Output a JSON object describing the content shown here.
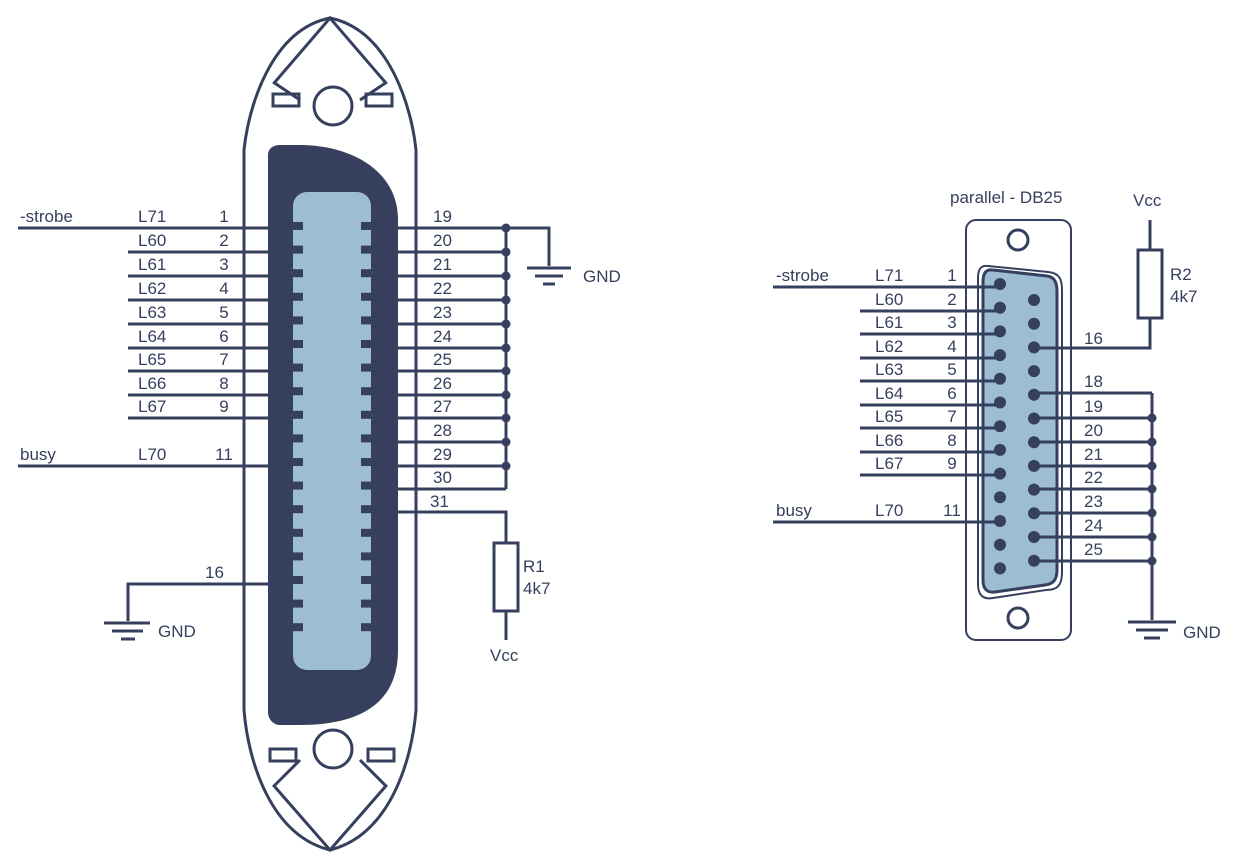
{
  "colors": {
    "ink": "#36405e",
    "body_dark": "#36405e",
    "body_light": "#9dbdd4",
    "background": "#ffffff"
  },
  "centronics": {
    "left_signals": [
      {
        "name": "-strobe",
        "line": "L71",
        "pin": "1"
      },
      {
        "name": "",
        "line": "L60",
        "pin": "2"
      },
      {
        "name": "",
        "line": "L61",
        "pin": "3"
      },
      {
        "name": "",
        "line": "L62",
        "pin": "4"
      },
      {
        "name": "",
        "line": "L63",
        "pin": "5"
      },
      {
        "name": "",
        "line": "L64",
        "pin": "6"
      },
      {
        "name": "",
        "line": "L65",
        "pin": "7"
      },
      {
        "name": "",
        "line": "L66",
        "pin": "8"
      },
      {
        "name": "",
        "line": "L67",
        "pin": "9"
      },
      {
        "name": "busy",
        "line": "L70",
        "pin": "11"
      }
    ],
    "right_pins": [
      "19",
      "20",
      "21",
      "22",
      "23",
      "24",
      "25",
      "26",
      "27",
      "28",
      "29",
      "30"
    ],
    "pullup_pin": "31",
    "gnd_pin": "16",
    "gnd_label": "GND",
    "gnd_label_bottom": "GND",
    "resistor": {
      "name": "R1",
      "value": "4k7"
    },
    "vcc_label": "Vcc"
  },
  "db25": {
    "title": "parallel - DB25",
    "left_signals": [
      {
        "name": "-strobe",
        "line": "L71",
        "pin": "1"
      },
      {
        "name": "",
        "line": "L60",
        "pin": "2"
      },
      {
        "name": "",
        "line": "L61",
        "pin": "3"
      },
      {
        "name": "",
        "line": "L62",
        "pin": "4"
      },
      {
        "name": "",
        "line": "L63",
        "pin": "5"
      },
      {
        "name": "",
        "line": "L64",
        "pin": "6"
      },
      {
        "name": "",
        "line": "L65",
        "pin": "7"
      },
      {
        "name": "",
        "line": "L66",
        "pin": "8"
      },
      {
        "name": "",
        "line": "L67",
        "pin": "9"
      },
      {
        "name": "busy",
        "line": "L70",
        "pin": "11"
      }
    ],
    "pullup_pin": "16",
    "right_pins": [
      "18",
      "19",
      "20",
      "21",
      "22",
      "23",
      "24",
      "25"
    ],
    "vcc_label": "Vcc",
    "resistor": {
      "name": "R2",
      "value": "4k7"
    },
    "gnd_label": "GND"
  }
}
